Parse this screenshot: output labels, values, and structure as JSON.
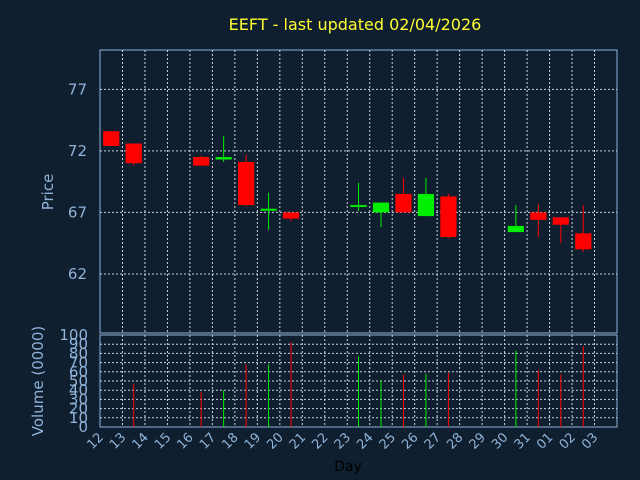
{
  "chart_data": {
    "type": "candlestick",
    "title": "EEFT - last updated 02/04/2026",
    "xlabel": "Day",
    "price_panel": {
      "ylabel": "Price",
      "ylim": [
        57.2,
        80.2
      ],
      "yticks": [
        62,
        67,
        72,
        77
      ],
      "grid": true
    },
    "volume_panel": {
      "ylabel": "Volume (0000)",
      "ylim": [
        0,
        100
      ],
      "yticks": [
        0,
        10,
        20,
        30,
        40,
        50,
        60,
        70,
        80,
        90,
        100
      ],
      "grid": true
    },
    "x_tick_labels": [
      "12",
      "13",
      "14",
      "15",
      "16",
      "17",
      "18",
      "19",
      "20",
      "21",
      "22",
      "23",
      "24",
      "25",
      "26",
      "27",
      "28",
      "29",
      "30",
      "31",
      "01",
      "02",
      "03"
    ],
    "up_color": "#00ee00",
    "down_color": "#ff0000",
    "candles": [
      {
        "day": "12",
        "open": 73.6,
        "high": 73.6,
        "low": 72.4,
        "close": 72.4,
        "volume": 0
      },
      {
        "day": "13",
        "open": 72.6,
        "high": 72.6,
        "low": 70.8,
        "close": 71.0,
        "volume": 47
      },
      {
        "day": "16",
        "open": 71.5,
        "high": 71.6,
        "low": 70.8,
        "close": 70.8,
        "volume": 38
      },
      {
        "day": "17",
        "open": 71.3,
        "high": 73.2,
        "low": 71.1,
        "close": 71.5,
        "volume": 40
      },
      {
        "day": "18",
        "open": 71.1,
        "high": 71.7,
        "low": 67.5,
        "close": 67.6,
        "volume": 68
      },
      {
        "day": "19",
        "open": 67.3,
        "high": 68.6,
        "low": 65.6,
        "close": 67.3,
        "volume": 68
      },
      {
        "day": "20",
        "open": 67.0,
        "high": 67.0,
        "low": 66.3,
        "close": 66.5,
        "volume": 92
      },
      {
        "day": "23",
        "open": 67.6,
        "high": 69.4,
        "low": 67.1,
        "close": 67.6,
        "volume": 77
      },
      {
        "day": "24",
        "open": 67.0,
        "high": 67.8,
        "low": 65.8,
        "close": 67.8,
        "volume": 51
      },
      {
        "day": "25",
        "open": 68.5,
        "high": 69.8,
        "low": 67.0,
        "close": 67.0,
        "volume": 57
      },
      {
        "day": "26",
        "open": 66.7,
        "high": 69.8,
        "low": 66.7,
        "close": 68.5,
        "volume": 58
      },
      {
        "day": "27",
        "open": 68.3,
        "high": 68.5,
        "low": 64.9,
        "close": 65.0,
        "volume": 59
      },
      {
        "day": "30",
        "open": 65.4,
        "high": 67.6,
        "low": 65.4,
        "close": 65.9,
        "volume": 83
      },
      {
        "day": "31",
        "open": 67.0,
        "high": 67.7,
        "low": 65.0,
        "close": 66.4,
        "volume": 62
      },
      {
        "day": "01",
        "open": 66.6,
        "high": 66.6,
        "low": 64.5,
        "close": 66.0,
        "volume": 57
      },
      {
        "day": "02",
        "open": 65.3,
        "high": 67.6,
        "low": 63.8,
        "close": 64.0,
        "volume": 88
      }
    ]
  }
}
